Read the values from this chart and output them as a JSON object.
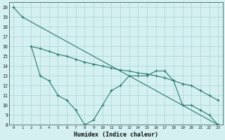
{
  "xlabel": "Humidex (Indice chaleur)",
  "bg_color": "#d4f0f0",
  "grid_color": "#aad4d4",
  "line_color": "#2a7a70",
  "xlim": [
    -0.5,
    23.5
  ],
  "ylim": [
    8,
    20.5
  ],
  "xticks": [
    0,
    1,
    2,
    3,
    4,
    5,
    6,
    7,
    8,
    9,
    10,
    11,
    12,
    13,
    14,
    15,
    16,
    17,
    18,
    19,
    20,
    21,
    22,
    23
  ],
  "yticks": [
    8,
    9,
    10,
    11,
    12,
    13,
    14,
    15,
    16,
    17,
    18,
    19,
    20
  ],
  "line1_x": [
    0,
    1,
    23
  ],
  "line1_y": [
    20,
    19,
    8
  ],
  "line2_x": [
    2,
    3,
    4,
    5,
    6,
    7,
    8,
    9,
    10,
    11,
    12,
    13,
    14,
    15,
    16,
    17,
    18,
    19,
    20,
    21,
    22,
    23
  ],
  "line2_y": [
    16,
    15.8,
    15.5,
    15.2,
    15.0,
    14.7,
    14.4,
    14.2,
    14.0,
    13.8,
    13.6,
    13.5,
    13.3,
    13.2,
    13.0,
    12.8,
    12.5,
    12.2,
    12.0,
    11.5,
    11.0,
    10.5
  ],
  "line3_x": [
    2,
    3,
    4,
    5,
    6,
    7,
    8,
    9,
    10,
    11,
    12,
    13,
    14,
    15,
    16,
    17,
    18,
    19,
    20,
    21,
    22,
    23
  ],
  "line3_y": [
    16,
    13,
    12.5,
    11,
    10.5,
    9.5,
    8,
    8.5,
    10,
    11.5,
    12,
    13,
    13,
    13,
    13.5,
    13.5,
    12.5,
    10,
    10,
    9.5,
    9,
    8
  ]
}
